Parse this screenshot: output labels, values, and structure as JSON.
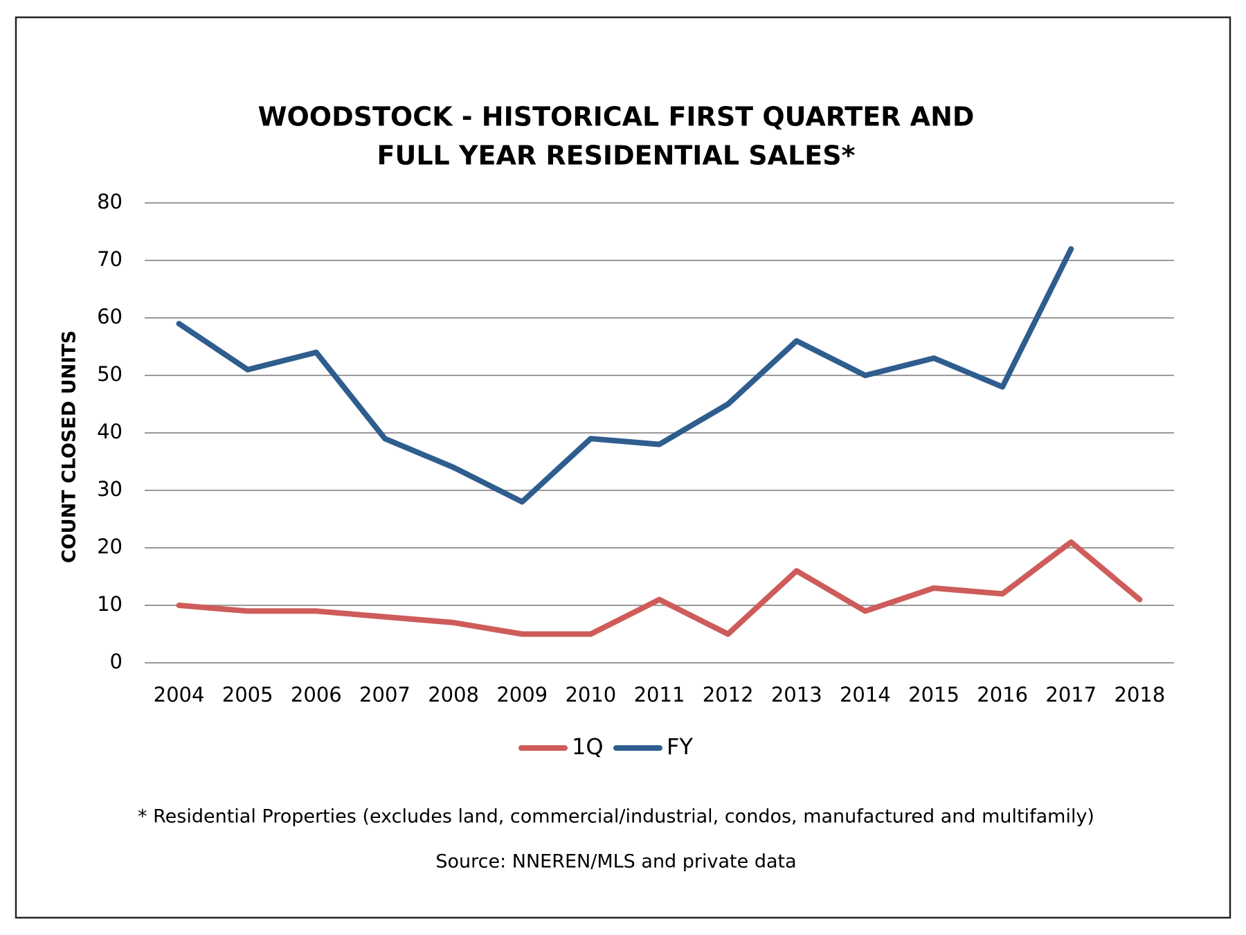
{
  "chart_data": {
    "type": "line",
    "title": [
      "WOODSTOCK - HISTORICAL FIRST QUARTER AND",
      "FULL YEAR RESIDENTIAL SALES*"
    ],
    "y_label": "COUNT CLOSED UNITS",
    "categories": [
      "2004",
      "2005",
      "2006",
      "2007",
      "2008",
      "2009",
      "2010",
      "2011",
      "2012",
      "2013",
      "2014",
      "2015",
      "2016",
      "2017",
      "2018"
    ],
    "series": [
      {
        "name": "1Q",
        "color": "#cd5c5a",
        "values": [
          10,
          9,
          9,
          8,
          7,
          5,
          5,
          11,
          5,
          16,
          9,
          13,
          12,
          21,
          11
        ]
      },
      {
        "name": "FY",
        "color": "#2e5d8e",
        "values": [
          59,
          51,
          54,
          39,
          34,
          28,
          39,
          38,
          45,
          56,
          50,
          53,
          48,
          72,
          null
        ]
      }
    ],
    "ylim": [
      0,
      80
    ],
    "yticks": [
      0,
      10,
      20,
      30,
      40,
      50,
      60,
      70,
      80
    ],
    "grid": true,
    "legend": "bottom",
    "notes": [
      "* Residential Properties (excludes land, commercial/industrial, condos, manufactured and multifamily)",
      "Source: NNEREN/MLS and private data"
    ]
  }
}
